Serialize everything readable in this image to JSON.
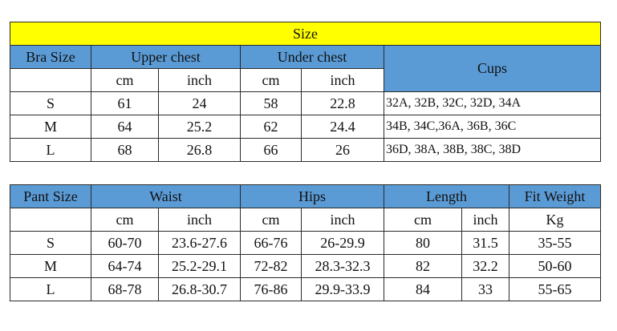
{
  "bra_table": {
    "title": "Size",
    "headers": {
      "size": "Bra Size",
      "upper_chest": "Upper chest",
      "under_chest": "Under chest",
      "cups": "Cups"
    },
    "units": [
      "cm",
      "inch",
      "cm",
      "inch"
    ],
    "rows": [
      {
        "size": "S",
        "upper_cm": "61",
        "upper_inch": "24",
        "under_cm": "58",
        "under_inch": "22.8",
        "cups": "32A, 32B, 32C, 32D, 34A"
      },
      {
        "size": "M",
        "upper_cm": "64",
        "upper_inch": "25.2",
        "under_cm": "62",
        "under_inch": "24.4",
        "cups": "34B, 34C,36A, 36B, 36C"
      },
      {
        "size": "L",
        "upper_cm": "68",
        "upper_inch": "26.8",
        "under_cm": "66",
        "under_inch": "26",
        "cups": "36D, 38A, 38B, 38C, 38D"
      }
    ]
  },
  "pant_table": {
    "headers": {
      "size": "Pant Size",
      "waist": "Waist",
      "hips": "Hips",
      "length": "Length",
      "fit_weight": "Fit Weight"
    },
    "units": [
      "cm",
      "inch",
      "cm",
      "inch",
      "cm",
      "inch",
      "Kg"
    ],
    "rows": [
      {
        "size": "S",
        "waist_cm": "60-70",
        "waist_inch": "23.6-27.6",
        "hips_cm": "66-76",
        "hips_inch": "26-29.9",
        "length_cm": "80",
        "length_inch": "31.5",
        "weight": "35-55"
      },
      {
        "size": "M",
        "waist_cm": "64-74",
        "waist_inch": "25.2-29.1",
        "hips_cm": "72-82",
        "hips_inch": "28.3-32.3",
        "length_cm": "82",
        "length_inch": "32.2",
        "weight": "50-60"
      },
      {
        "size": "L",
        "waist_cm": "68-78",
        "waist_inch": "26.8-30.7",
        "hips_cm": "76-86",
        "hips_inch": "29.9-33.9",
        "length_cm": "84",
        "length_inch": "33",
        "weight": "55-65"
      }
    ]
  },
  "colors": {
    "title_bar": "#ffff00",
    "header_blue": "#5b9bd5"
  }
}
